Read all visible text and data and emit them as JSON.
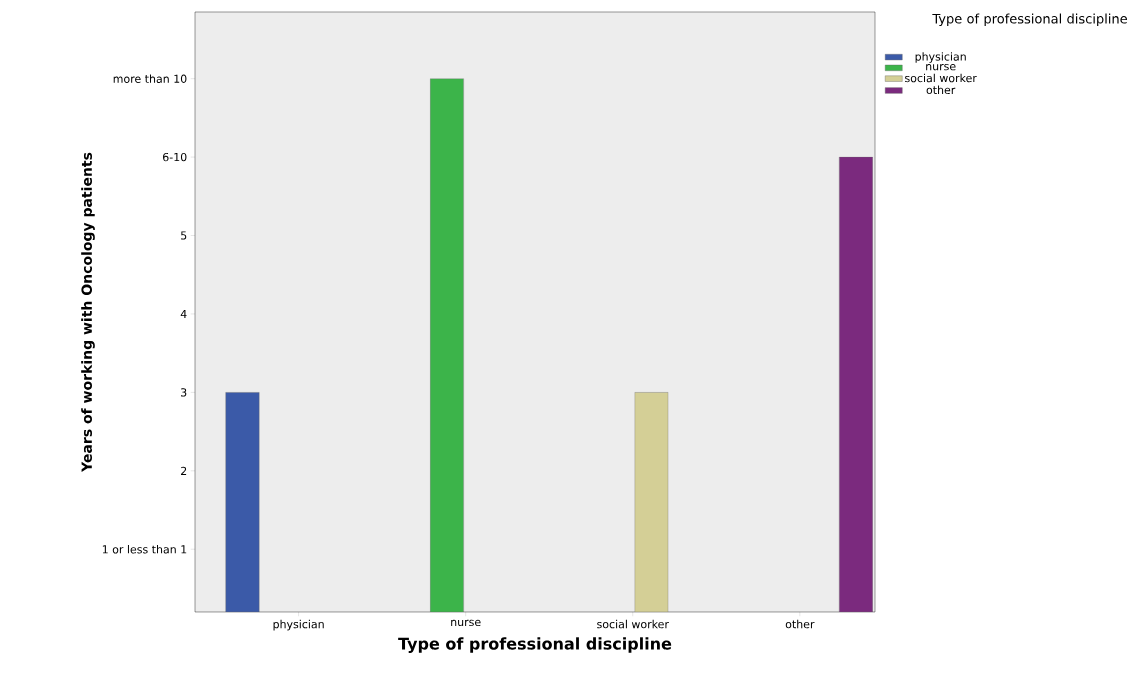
{
  "chart_data": {
    "type": "bar",
    "xlabel": "Type of professional discipline",
    "ylabel": "Years of working with Oncology patients",
    "legend_title": "Type of professional discipline",
    "legend": "top right",
    "grid": false,
    "categories": [
      "physician",
      "nurse",
      "social worker",
      "other"
    ],
    "ylim": [
      0.2,
      7.85
    ],
    "yticks": [
      {
        "value": 1,
        "label": "1 or less than 1"
      },
      2,
      3,
      4,
      5,
      {
        "value": 6,
        "label": "6-10"
      },
      {
        "value": 7,
        "label": "more than 10"
      }
    ],
    "series": [
      {
        "name": "physician",
        "color": "#3b5aa8",
        "values": [
          3,
          null,
          null,
          null
        ]
      },
      {
        "name": "nurse",
        "color": "#3cb44a",
        "values": [
          null,
          7,
          null,
          null
        ]
      },
      {
        "name": "social worker",
        "color": "#d4cf96",
        "values": [
          null,
          null,
          3,
          null
        ]
      },
      {
        "name": "other",
        "color": "#7b2a7e",
        "values": [
          null,
          null,
          null,
          6
        ]
      }
    ]
  }
}
